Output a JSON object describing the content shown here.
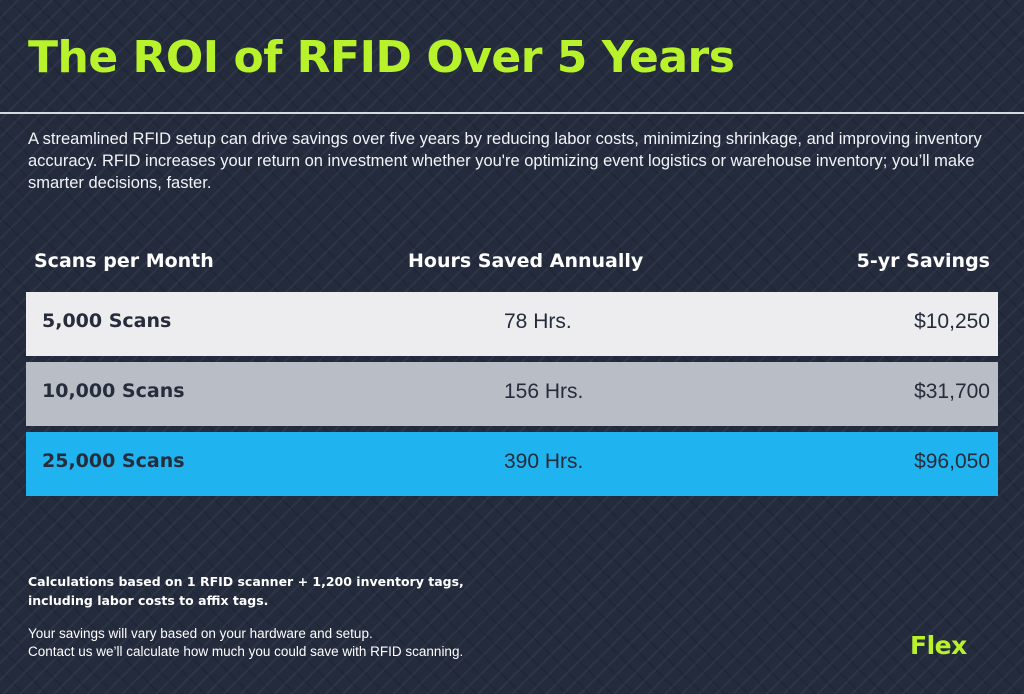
{
  "title": "The ROI of RFID Over 5 Years",
  "intro": "A streamlined RFID setup can drive savings over five years by reducing labor costs, minimizing shrinkage, and improving inventory accuracy. RFID increases your return on investment whether you're optimizing event logistics or warehouse inventory; you’ll make smarter decisions, faster.",
  "table": {
    "headers": [
      "Scans per Month",
      "Hours Saved Annually",
      "5-yr Savings"
    ],
    "rows": [
      {
        "scans": "5,000 Scans",
        "hours": "78 Hrs.",
        "savings": "$10,250",
        "color": "#ededef"
      },
      {
        "scans": "10,000 Scans",
        "hours": "156 Hrs.",
        "savings": "$31,700",
        "color": "#b9bdc6"
      },
      {
        "scans": "25,000 Scans",
        "hours": "390 Hrs.",
        "savings": "$96,050",
        "color": "#1fb4ef"
      }
    ]
  },
  "footnote_bold": "Calculations based on 1 RFID scanner + 1,200 inventory tags, including labor costs to affix tags.",
  "footnote_lines": [
    "Your savings will vary based on your hardware and setup.",
    "Contact us we’ll calculate how much you could save with RFID scanning."
  ],
  "logo": "Flex",
  "colors": {
    "background": "#242b3d",
    "accent": "#b8f22a",
    "highlight": "#1fb4ef"
  }
}
